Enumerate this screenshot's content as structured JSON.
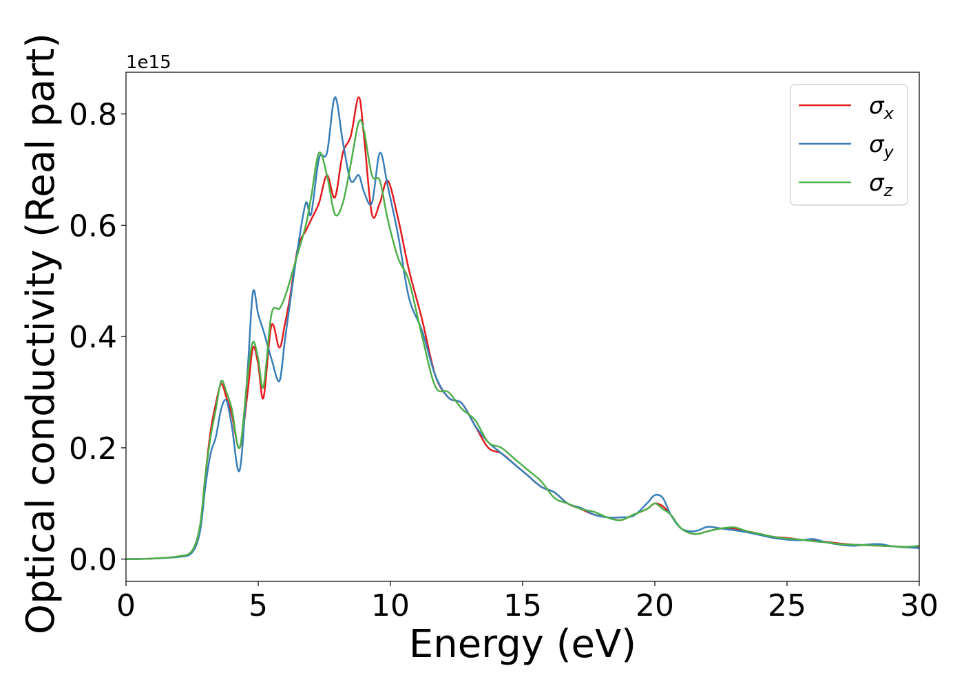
{
  "chart_data": {
    "type": "line",
    "xlabel": "Energy (eV)",
    "ylabel": "Optical conductivity (Real part)",
    "y_offset_label": "1e15",
    "xlim": [
      0,
      30
    ],
    "ylim": [
      -0.04,
      0.875
    ],
    "x_ticks": [
      0,
      5,
      10,
      15,
      20,
      25,
      30
    ],
    "x_tick_labels": [
      "0",
      "5",
      "10",
      "15",
      "20",
      "25",
      "30"
    ],
    "y_ticks": [
      0.0,
      0.2,
      0.4,
      0.6,
      0.8
    ],
    "y_tick_labels": [
      "0.0",
      "0.2",
      "0.4",
      "0.6",
      "0.8"
    ],
    "grid": false,
    "legend_position": "top-right",
    "series": [
      {
        "name": "σx",
        "symbol": "σ",
        "sub": "x",
        "color": "#e41a1c",
        "x": [
          0,
          1,
          2,
          2.5,
          2.8,
          3.0,
          3.2,
          3.4,
          3.6,
          3.8,
          4.0,
          4.3,
          4.6,
          4.8,
          5.0,
          5.2,
          5.5,
          5.8,
          6.0,
          6.2,
          6.5,
          6.8,
          7.0,
          7.3,
          7.6,
          7.9,
          8.2,
          8.5,
          8.8,
          9.0,
          9.3,
          9.6,
          9.9,
          10.3,
          10.7,
          11.2,
          11.7,
          12.2,
          12.7,
          13.2,
          13.7,
          14.2,
          14.7,
          15.2,
          15.7,
          16.2,
          16.7,
          17.2,
          17.7,
          18.2,
          18.7,
          19.2,
          19.7,
          20.0,
          20.3,
          20.6,
          21.0,
          21.5,
          22.0,
          22.5,
          23.0,
          23.5,
          24.0,
          24.5,
          25.0,
          25.5,
          26.0,
          26.5,
          27.0,
          27.5,
          28.0,
          28.5,
          29.0,
          29.5,
          30.0
        ],
        "y": [
          0,
          0.001,
          0.005,
          0.015,
          0.06,
          0.15,
          0.23,
          0.28,
          0.315,
          0.29,
          0.26,
          0.2,
          0.3,
          0.38,
          0.35,
          0.29,
          0.42,
          0.38,
          0.42,
          0.47,
          0.56,
          0.59,
          0.61,
          0.64,
          0.69,
          0.65,
          0.73,
          0.76,
          0.83,
          0.76,
          0.62,
          0.64,
          0.68,
          0.61,
          0.52,
          0.43,
          0.33,
          0.29,
          0.28,
          0.24,
          0.2,
          0.19,
          0.17,
          0.15,
          0.13,
          0.12,
          0.1,
          0.09,
          0.08,
          0.075,
          0.07,
          0.08,
          0.09,
          0.1,
          0.095,
          0.08,
          0.055,
          0.045,
          0.05,
          0.055,
          0.055,
          0.05,
          0.045,
          0.04,
          0.038,
          0.035,
          0.033,
          0.031,
          0.028,
          0.026,
          0.025,
          0.024,
          0.023,
          0.022,
          0.022
        ]
      },
      {
        "name": "σy",
        "symbol": "σ",
        "sub": "y",
        "color": "#377eb8",
        "x": [
          0,
          1,
          2,
          2.5,
          2.8,
          3.0,
          3.2,
          3.4,
          3.6,
          3.8,
          4.0,
          4.3,
          4.6,
          4.8,
          5.0,
          5.2,
          5.5,
          5.8,
          6.0,
          6.2,
          6.5,
          6.8,
          7.0,
          7.3,
          7.6,
          7.9,
          8.2,
          8.5,
          8.8,
          9.0,
          9.3,
          9.6,
          9.9,
          10.3,
          10.7,
          11.2,
          11.7,
          12.2,
          12.7,
          13.2,
          13.7,
          14.2,
          14.7,
          15.2,
          15.7,
          16.2,
          16.7,
          17.2,
          17.7,
          18.2,
          18.7,
          19.2,
          19.7,
          20.0,
          20.3,
          20.6,
          21.0,
          21.5,
          22.0,
          22.5,
          23.0,
          23.5,
          24.0,
          24.5,
          25.0,
          25.5,
          26.0,
          26.5,
          27.0,
          27.5,
          28.0,
          28.5,
          29.0,
          29.5,
          30.0
        ],
        "y": [
          0,
          0.001,
          0.004,
          0.012,
          0.05,
          0.13,
          0.19,
          0.22,
          0.27,
          0.285,
          0.24,
          0.16,
          0.34,
          0.48,
          0.44,
          0.41,
          0.36,
          0.32,
          0.39,
          0.46,
          0.56,
          0.64,
          0.62,
          0.72,
          0.73,
          0.83,
          0.75,
          0.68,
          0.69,
          0.66,
          0.64,
          0.73,
          0.67,
          0.58,
          0.47,
          0.41,
          0.33,
          0.29,
          0.28,
          0.24,
          0.21,
          0.19,
          0.17,
          0.15,
          0.13,
          0.12,
          0.1,
          0.092,
          0.08,
          0.075,
          0.075,
          0.078,
          0.1,
          0.115,
          0.11,
          0.08,
          0.055,
          0.05,
          0.058,
          0.055,
          0.052,
          0.048,
          0.043,
          0.038,
          0.035,
          0.034,
          0.036,
          0.03,
          0.026,
          0.024,
          0.026,
          0.027,
          0.023,
          0.021,
          0.02
        ]
      },
      {
        "name": "σz",
        "symbol": "σ",
        "sub": "z",
        "color": "#4daf4a",
        "x": [
          0,
          1,
          2,
          2.5,
          2.8,
          3.0,
          3.2,
          3.4,
          3.6,
          3.8,
          4.0,
          4.3,
          4.6,
          4.8,
          5.0,
          5.2,
          5.5,
          5.8,
          6.0,
          6.2,
          6.5,
          6.8,
          7.0,
          7.3,
          7.6,
          7.9,
          8.2,
          8.5,
          8.8,
          9.0,
          9.3,
          9.6,
          9.9,
          10.3,
          10.7,
          11.2,
          11.7,
          12.2,
          12.7,
          13.2,
          13.7,
          14.2,
          14.7,
          15.2,
          15.7,
          16.2,
          16.7,
          17.2,
          17.7,
          18.2,
          18.7,
          19.2,
          19.7,
          20.0,
          20.3,
          20.6,
          21.0,
          21.5,
          22.0,
          22.5,
          23.0,
          23.5,
          24.0,
          24.5,
          25.0,
          25.5,
          26.0,
          26.5,
          27.0,
          27.5,
          28.0,
          28.5,
          29.0,
          29.5,
          30.0
        ],
        "y": [
          0,
          0.001,
          0.005,
          0.015,
          0.06,
          0.15,
          0.22,
          0.27,
          0.32,
          0.3,
          0.27,
          0.2,
          0.33,
          0.39,
          0.36,
          0.31,
          0.44,
          0.45,
          0.47,
          0.5,
          0.55,
          0.6,
          0.65,
          0.73,
          0.69,
          0.62,
          0.64,
          0.71,
          0.785,
          0.77,
          0.69,
          0.68,
          0.61,
          0.54,
          0.5,
          0.4,
          0.31,
          0.3,
          0.27,
          0.25,
          0.21,
          0.2,
          0.18,
          0.16,
          0.14,
          0.11,
          0.1,
          0.09,
          0.085,
          0.075,
          0.07,
          0.08,
          0.09,
          0.1,
          0.09,
          0.08,
          0.055,
          0.045,
          0.05,
          0.055,
          0.057,
          0.05,
          0.045,
          0.04,
          0.037,
          0.035,
          0.032,
          0.03,
          0.027,
          0.026,
          0.025,
          0.024,
          0.023,
          0.022,
          0.024
        ]
      }
    ]
  }
}
